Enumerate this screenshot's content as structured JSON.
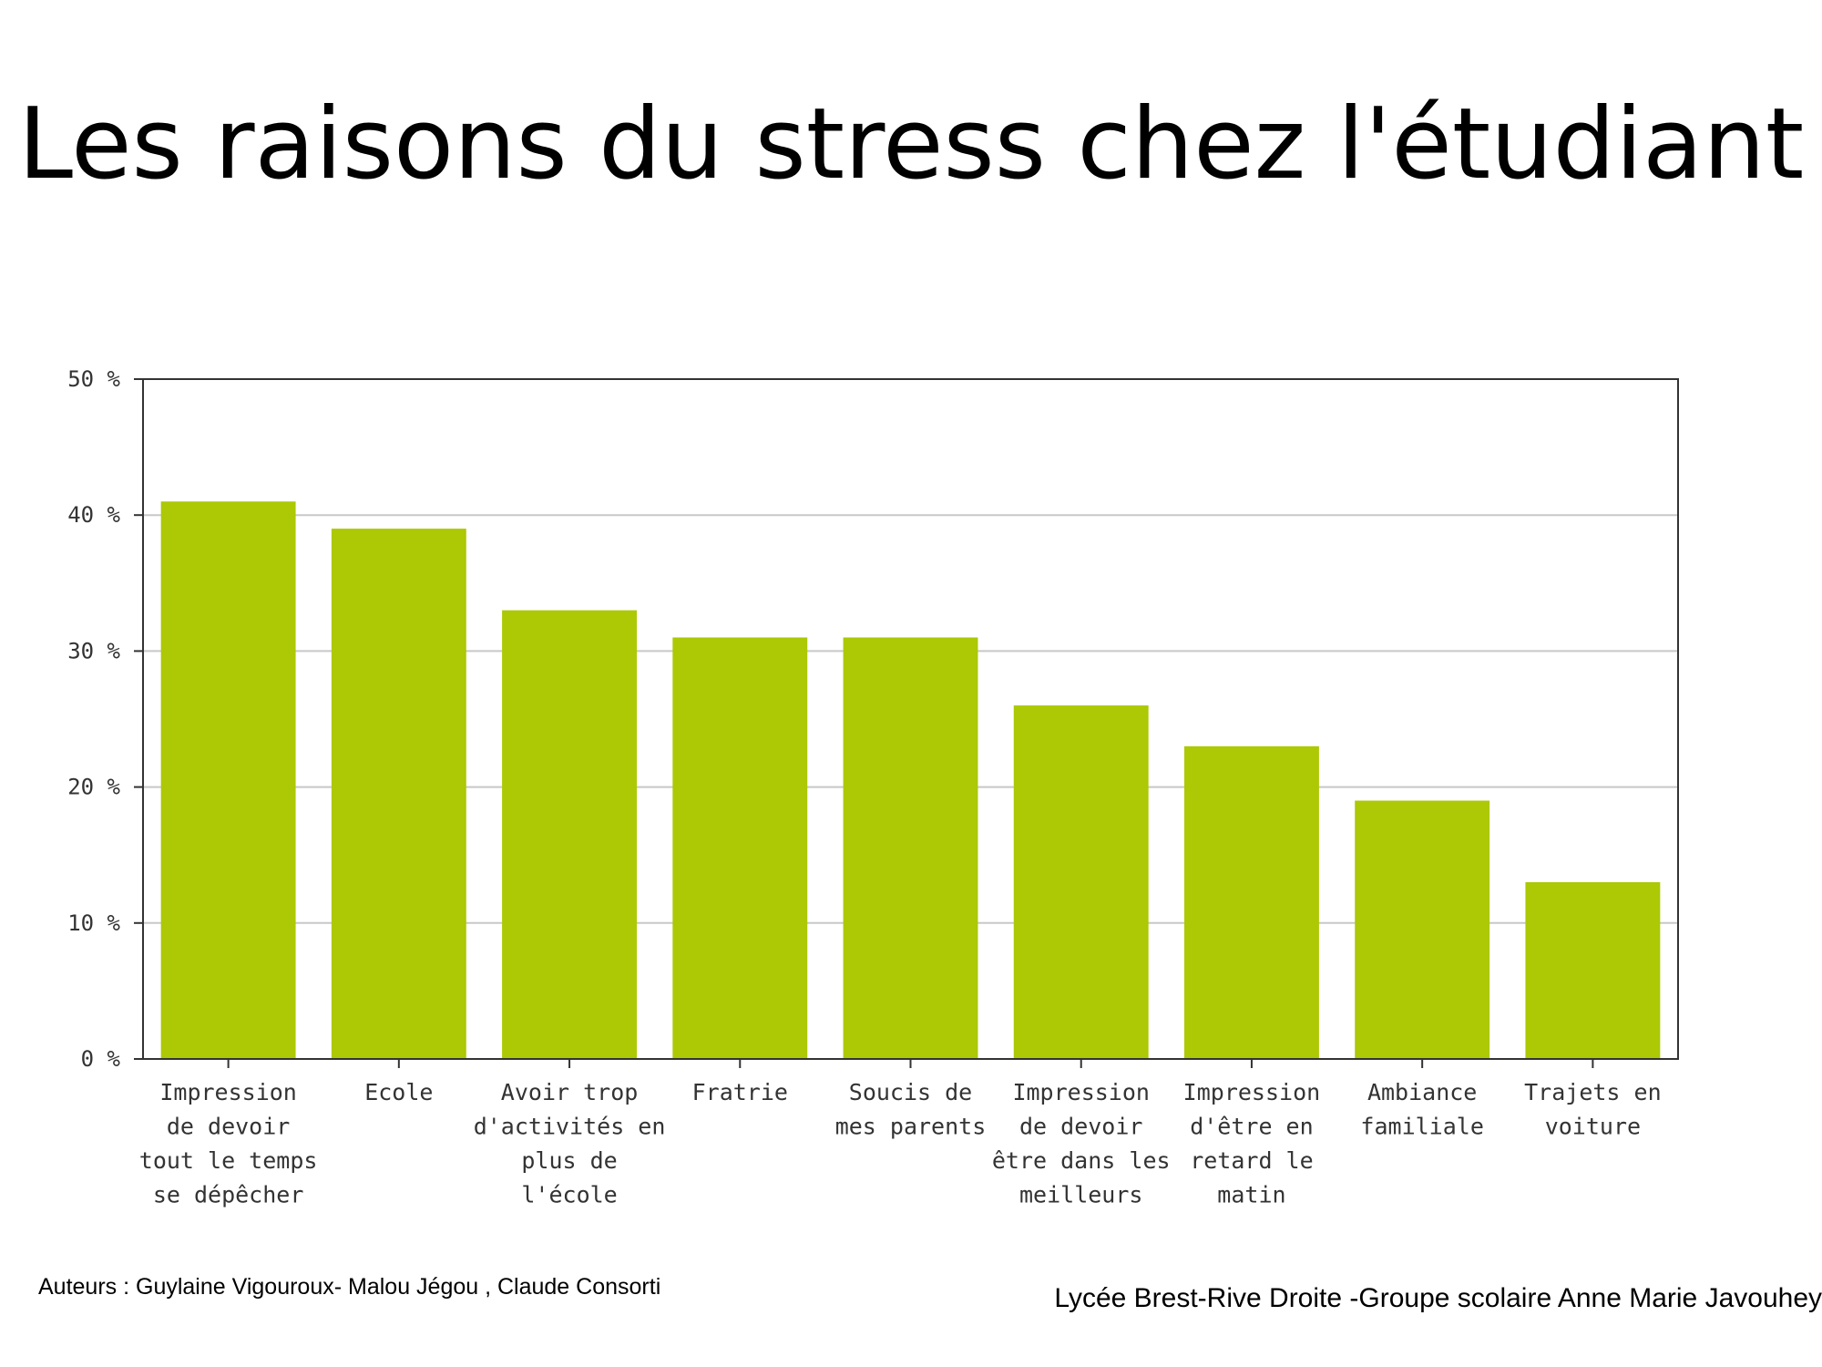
{
  "slide": {
    "title": "Les raisons du stress chez l'étudiant",
    "footer_left": "Auteurs : Guylaine Vigouroux- Malou Jégou , Claude Consorti",
    "footer_right": "Lycée Brest-Rive Droite -Groupe scolaire  Anne Marie Javouhey"
  },
  "chart_data": {
    "type": "bar",
    "title": "",
    "xlabel": "",
    "ylabel": "",
    "ylim": [
      0,
      50
    ],
    "yticks": [
      0,
      10,
      20,
      30,
      40,
      50
    ],
    "ytick_labels": [
      "0 %",
      "10 %",
      "20 %",
      "30 %",
      "40 %",
      "50 %"
    ],
    "grid": true,
    "legend": "none",
    "categories": [
      "Impression de devoir tout le temps se dépêcher",
      "Ecole",
      "Avoir trop d'activités en plus de l'école",
      "Fratrie",
      "Soucis de mes parents",
      "Impression de devoir être dans les meilleurs",
      "Impression d'être en retard le matin",
      "Ambiance familiale",
      "Trajets en voiture"
    ],
    "category_lines": [
      [
        "Impression",
        "de devoir",
        "tout le temps",
        "se dépêcher"
      ],
      [
        "Ecole"
      ],
      [
        "Avoir trop",
        "d'activités en",
        "plus de",
        "l'école"
      ],
      [
        "Fratrie"
      ],
      [
        "Soucis de",
        "mes parents"
      ],
      [
        "Impression",
        "de devoir",
        "être dans les",
        "meilleurs"
      ],
      [
        "Impression",
        "d'être en",
        "retard le",
        "matin"
      ],
      [
        "Ambiance",
        "familiale"
      ],
      [
        "Trajets en",
        "voiture"
      ]
    ],
    "values": [
      41,
      39,
      33,
      31,
      31,
      26,
      23,
      19,
      13
    ],
    "bar_color": "#adc805",
    "grid_color": "#c8c8c8",
    "axis_color": "#333333"
  }
}
